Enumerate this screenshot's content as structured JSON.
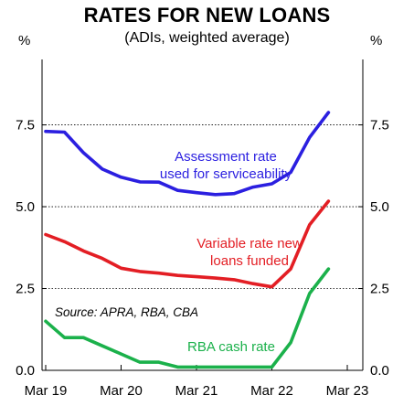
{
  "chart_data": {
    "type": "line",
    "title": "RATES FOR NEW LOANS",
    "subtitle": "(ADIs, weighted average)",
    "y_unit_left": "%",
    "y_unit_right": "%",
    "xlim": [
      2019.0,
      2023.0
    ],
    "ylim": [
      0,
      9.5
    ],
    "x_ticks": [
      2019.0,
      2020.0,
      2021.0,
      2022.0,
      2023.0
    ],
    "x_tick_labels": [
      "Mar 19",
      "Mar 20",
      "Mar 21",
      "Mar 22",
      "Mar 23"
    ],
    "y_ticks": [
      0,
      2.5,
      5,
      7.5
    ],
    "y_tick_labels": [
      "0.0",
      "2.5",
      "5.0",
      "7.5"
    ],
    "grid": "horizontal dotted at major ticks",
    "source_note": "Source: APRA, RBA, CBA",
    "series": [
      {
        "name": "Assessment rate used for serviceability",
        "label_lines": [
          "Assessment rate",
          "used for serviceability"
        ],
        "color": "#2b1fe0",
        "x": [
          2019.0,
          2019.25,
          2019.5,
          2019.75,
          2020.0,
          2020.25,
          2020.5,
          2020.75,
          2021.0,
          2021.25,
          2021.5,
          2021.75,
          2022.0,
          2022.25,
          2022.5,
          2022.75
        ],
        "values": [
          7.3,
          7.28,
          6.65,
          6.15,
          5.9,
          5.76,
          5.75,
          5.5,
          5.43,
          5.37,
          5.4,
          5.6,
          5.7,
          6.05,
          7.12,
          7.88
        ]
      },
      {
        "name": "Variable rate new loans funded",
        "label_lines": [
          "Variable rate new",
          "loans funded"
        ],
        "color": "#e31e24",
        "x": [
          2019.0,
          2019.25,
          2019.5,
          2019.75,
          2020.0,
          2020.25,
          2020.5,
          2020.75,
          2021.0,
          2021.25,
          2021.5,
          2021.75,
          2022.0,
          2022.25,
          2022.5,
          2022.75
        ],
        "values": [
          4.15,
          3.93,
          3.65,
          3.42,
          3.12,
          3.02,
          2.97,
          2.9,
          2.86,
          2.82,
          2.77,
          2.65,
          2.55,
          3.1,
          4.45,
          5.17
        ]
      },
      {
        "name": "RBA cash rate",
        "label_lines": [
          "RBA cash rate"
        ],
        "color": "#1bb14b",
        "x": [
          2019.0,
          2019.25,
          2019.5,
          2019.75,
          2020.0,
          2020.25,
          2020.5,
          2020.75,
          2021.0,
          2021.25,
          2021.5,
          2021.75,
          2022.0,
          2022.25,
          2022.5,
          2022.75
        ],
        "values": [
          1.5,
          1.0,
          1.0,
          0.75,
          0.5,
          0.25,
          0.25,
          0.1,
          0.1,
          0.1,
          0.1,
          0.1,
          0.1,
          0.85,
          2.35,
          3.1
        ]
      }
    ]
  }
}
